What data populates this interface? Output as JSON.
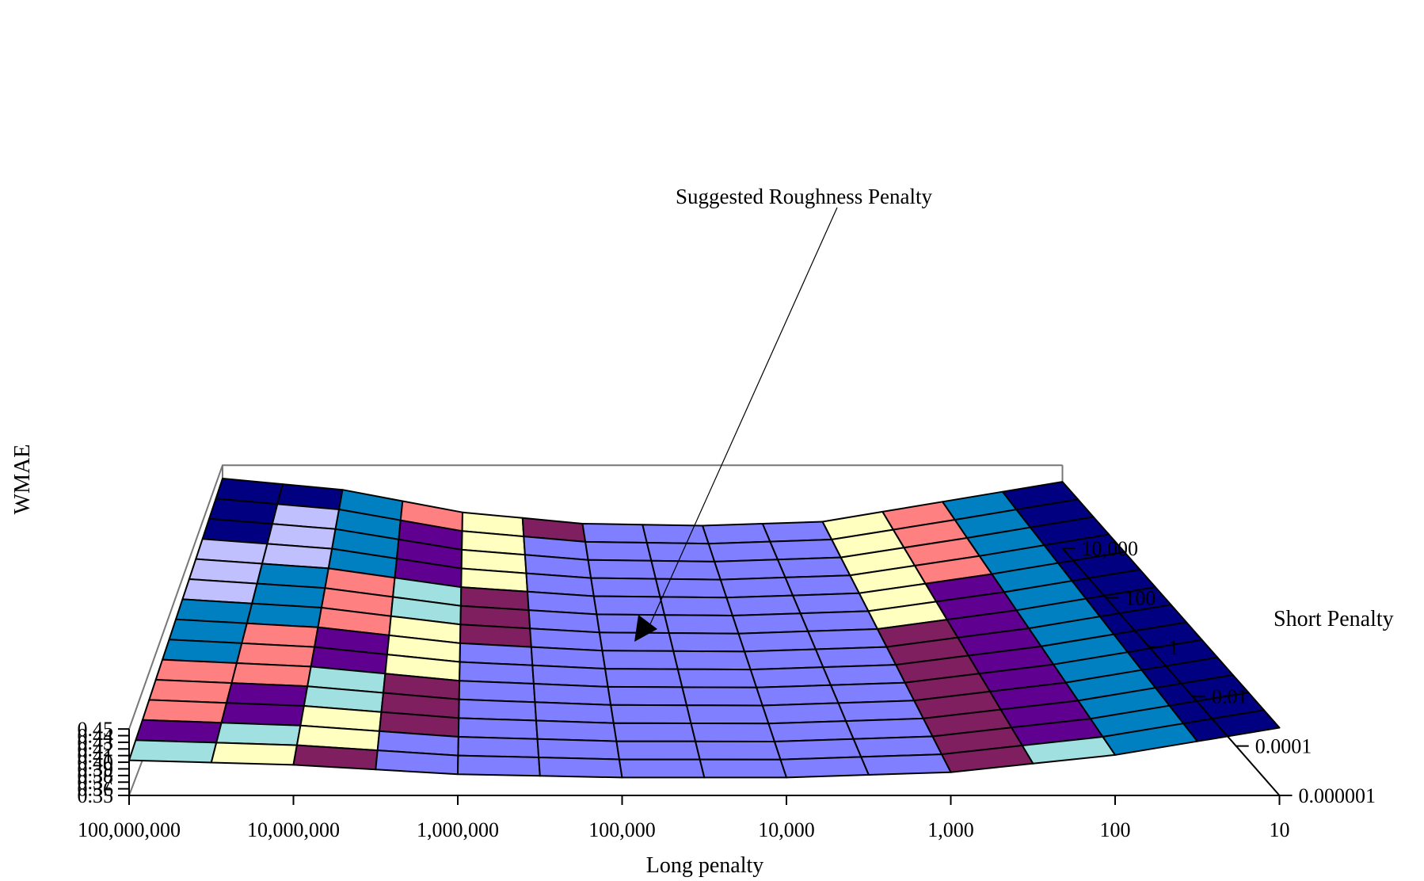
{
  "chart_data": {
    "type": "surface",
    "title": "",
    "xlabel": "Long penalty",
    "ylabel": "WMAE",
    "zlabel": "Short Penalty",
    "x_ticks": [
      "100,000,000",
      "10,000,000",
      "1,000,000",
      "100,000",
      "10,000",
      "1,000",
      "100",
      "10"
    ],
    "y_ticks": [
      "0.35",
      "0.36",
      "0.37",
      "0.38",
      "0.39",
      "0.40",
      "0.41",
      "0.42",
      "0.43",
      "0.44",
      "0.45"
    ],
    "z_ticks": [
      "0.000001",
      "0.0001",
      "0.01",
      "1",
      "100",
      "10,000"
    ],
    "ylim": [
      0.35,
      0.45
    ],
    "front_edge_wmae": [
      0.403,
      0.396,
      0.382,
      0.377,
      0.377,
      0.385,
      0.411,
      0.452
    ],
    "back_edge_wmae": [
      0.455,
      0.438,
      0.404,
      0.387,
      0.384,
      0.39,
      0.42,
      0.45
    ],
    "color_bands": [
      {
        "range": [
          0.35,
          0.39
        ],
        "color": "#7f7fff"
      },
      {
        "range": [
          0.39,
          0.395
        ],
        "color": "#7f1f5f"
      },
      {
        "range": [
          0.395,
          0.4
        ],
        "color": "#ffffbf"
      },
      {
        "range": [
          0.4,
          0.405
        ],
        "color": "#a0e0e0"
      },
      {
        "range": [
          0.405,
          0.41
        ],
        "color": "#600090"
      },
      {
        "range": [
          0.41,
          0.42
        ],
        "color": "#ff8080"
      },
      {
        "range": [
          0.42,
          0.43
        ],
        "color": "#0080c0"
      },
      {
        "range": [
          0.43,
          0.44
        ],
        "color": "#c0c0ff"
      },
      {
        "range": [
          0.44,
          0.45
        ],
        "color": "#000080"
      },
      {
        "range": [
          0.45,
          0.47
        ],
        "color": "#ff00ff"
      }
    ],
    "annotation": "Suggested Roughness Penalty"
  }
}
